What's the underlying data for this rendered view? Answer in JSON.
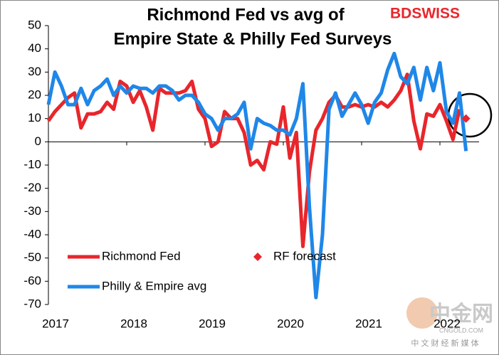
{
  "chart_data": {
    "type": "line",
    "title": "Richmond Fed vs avg of",
    "subtitle": "Empire State & Philly Fed Surveys",
    "logo": "BDSWISS",
    "watermark": "中金网",
    "watermark_sub": "CNGOLD.COM",
    "watermark_cn": "中 文 财 经 新 媒 体",
    "x": [
      0,
      1,
      2,
      3,
      4,
      5,
      6,
      7,
      8,
      9,
      10,
      11,
      12,
      13,
      14,
      15,
      16,
      17,
      18,
      19,
      20,
      21,
      22,
      23,
      24,
      25,
      26,
      27,
      28,
      29,
      30,
      31,
      32,
      33,
      34,
      35,
      36,
      37,
      38,
      39,
      40,
      41,
      42,
      43,
      44,
      45,
      46,
      47,
      48,
      49,
      50,
      51,
      52,
      53,
      54,
      55,
      56,
      57,
      58,
      59,
      60,
      61,
      62,
      63,
      64
    ],
    "series": [
      {
        "name": "Richmond Fed",
        "color": "#e8262b",
        "values": [
          9,
          13,
          16,
          19,
          21,
          6,
          12,
          12,
          13,
          17,
          14,
          26,
          24,
          17,
          22,
          15,
          5,
          23,
          21,
          21,
          21,
          22,
          26,
          14,
          10,
          -2,
          0,
          13,
          10,
          10,
          4,
          -10,
          -8,
          -12,
          0,
          -1,
          15,
          -7,
          4,
          -45,
          -13,
          5,
          10,
          17,
          20,
          15,
          15,
          16,
          15,
          16,
          15,
          17,
          15,
          18,
          22,
          29,
          9,
          -3,
          12,
          11,
          16,
          9,
          1,
          14,
          null
        ]
      },
      {
        "name": "Philly & Empire avg",
        "color": "#1f87e8",
        "values": [
          16,
          30,
          24,
          16,
          16,
          23,
          16,
          22,
          24,
          27,
          20,
          24,
          21,
          24,
          23,
          23,
          21,
          24,
          24,
          22,
          18,
          20,
          20,
          17,
          12,
          10,
          5,
          10,
          10,
          12,
          17,
          -3,
          10,
          8,
          7,
          5,
          5,
          3,
          10,
          25,
          -28,
          -67,
          -40,
          14,
          21,
          11,
          16,
          21,
          16,
          8,
          17,
          21,
          31,
          38,
          28,
          25,
          32,
          18,
          32,
          22,
          34,
          13,
          8,
          21,
          -4
        ]
      }
    ],
    "forecast": {
      "name": "RF forecast",
      "color": "#e8262b",
      "x": [
        64
      ],
      "values": [
        10
      ]
    },
    "xlim": [
      0,
      66
    ],
    "xticks": [
      {
        "value": 0,
        "label": "2017"
      },
      {
        "value": 12,
        "label": "2018"
      },
      {
        "value": 24,
        "label": "2019"
      },
      {
        "value": 36,
        "label": "2020"
      },
      {
        "value": 48,
        "label": "2021"
      },
      {
        "value": 60,
        "label": "2022"
      }
    ],
    "ylim": [
      -70,
      50
    ],
    "yticks": [
      -70,
      -60,
      -50,
      -40,
      -30,
      -20,
      -10,
      0,
      10,
      20,
      30,
      40,
      50
    ],
    "grid": false
  }
}
